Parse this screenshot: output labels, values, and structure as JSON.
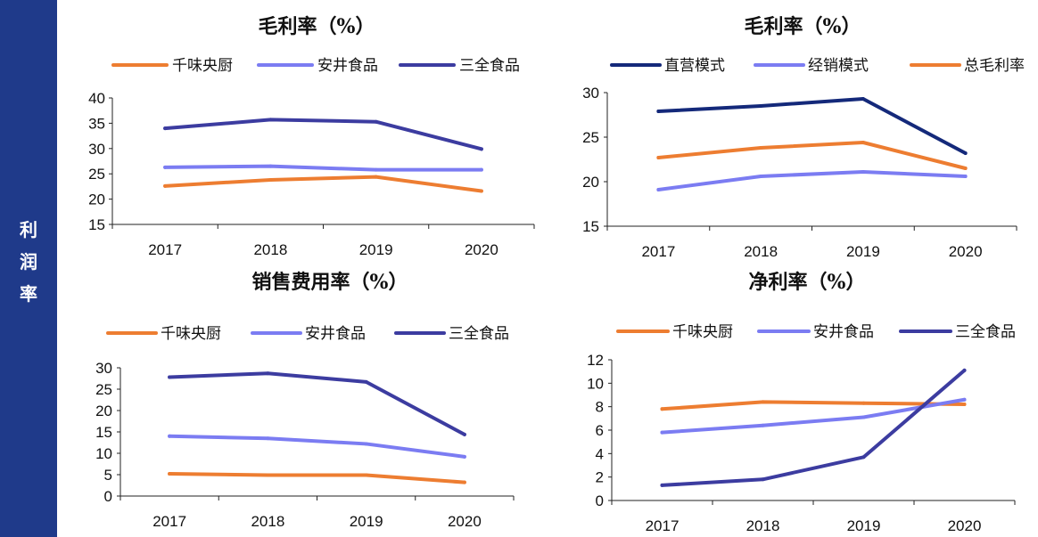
{
  "sidebar": {
    "label_chars": [
      "利",
      "润",
      "率"
    ],
    "bg_color": "#1f3a8a"
  },
  "colors": {
    "qianwei": "#ed7d31",
    "anjing": "#7b7cf2",
    "sanquan": "#3c3ca0",
    "direct": "#14297a",
    "distribution": "#7b7cf2",
    "total": "#ed7d31"
  },
  "chart_data": [
    {
      "type": "line",
      "title": "毛利率（%）",
      "categories": [
        "2017",
        "2018",
        "2019",
        "2020"
      ],
      "ylim": [
        15,
        40
      ],
      "yticks": [
        "15",
        "20",
        "25",
        "30",
        "35",
        "40"
      ],
      "series": [
        {
          "name": "千味央厨",
          "color": "#ed7d31",
          "values": [
            22.6,
            23.8,
            24.4,
            21.6
          ]
        },
        {
          "name": "安井食品",
          "color": "#7b7cf2",
          "values": [
            26.3,
            26.5,
            25.8,
            25.8
          ]
        },
        {
          "name": "三全食品",
          "color": "#3c3ca0",
          "values": [
            34.0,
            35.7,
            35.3,
            29.9
          ]
        }
      ]
    },
    {
      "type": "line",
      "title": "毛利率（%）",
      "categories": [
        "2017",
        "2018",
        "2019",
        "2020"
      ],
      "ylim": [
        15,
        30
      ],
      "yticks": [
        "15",
        "20",
        "25",
        "30"
      ],
      "series": [
        {
          "name": "直营模式",
          "color": "#14297a",
          "values": [
            27.9,
            28.5,
            29.3,
            23.2
          ]
        },
        {
          "name": "经销模式",
          "color": "#7b7cf2",
          "values": [
            19.1,
            20.6,
            21.1,
            20.6
          ]
        },
        {
          "name": "总毛利率",
          "color": "#ed7d31",
          "values": [
            22.7,
            23.8,
            24.4,
            21.5
          ]
        }
      ]
    },
    {
      "type": "line",
      "title": "销售费用率（%）",
      "categories": [
        "2017",
        "2018",
        "2019",
        "2020"
      ],
      "ylim": [
        0,
        30
      ],
      "yticks": [
        "0",
        "5",
        "10",
        "15",
        "20",
        "25",
        "30"
      ],
      "series": [
        {
          "name": "千味央厨",
          "color": "#ed7d31",
          "values": [
            5.2,
            4.9,
            4.9,
            3.2
          ]
        },
        {
          "name": "安井食品",
          "color": "#7b7cf2",
          "values": [
            14.0,
            13.5,
            12.2,
            9.2
          ]
        },
        {
          "name": "三全食品",
          "color": "#3c3ca0",
          "values": [
            27.8,
            28.7,
            26.7,
            14.4
          ]
        }
      ]
    },
    {
      "type": "line",
      "title": "净利率（%）",
      "categories": [
        "2017",
        "2018",
        "2019",
        "2020"
      ],
      "ylim": [
        0,
        12
      ],
      "yticks": [
        "0",
        "2",
        "4",
        "6",
        "8",
        "10",
        "12"
      ],
      "series": [
        {
          "name": "千味央厨",
          "color": "#ed7d31",
          "values": [
            7.8,
            8.4,
            8.3,
            8.2
          ]
        },
        {
          "name": "安井食品",
          "color": "#7b7cf2",
          "values": [
            5.8,
            6.4,
            7.1,
            8.6
          ]
        },
        {
          "name": "三全食品",
          "color": "#3c3ca0",
          "values": [
            1.3,
            1.8,
            3.7,
            11.1
          ]
        }
      ]
    }
  ]
}
